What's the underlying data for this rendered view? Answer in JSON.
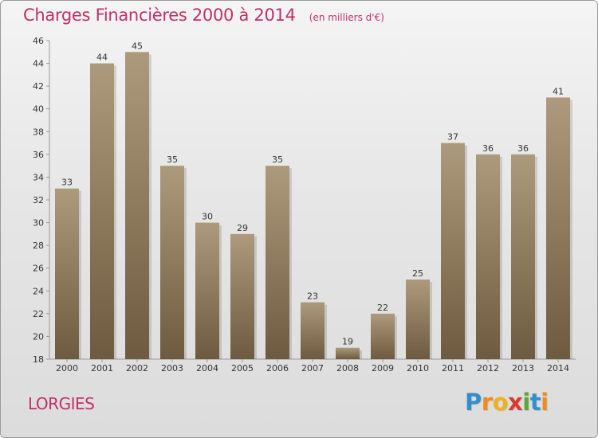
{
  "chart_data": {
    "type": "bar",
    "title": "Charges Financières 2000 à 2014",
    "subtitle": "(en milliers d'€)",
    "categories": [
      "2000",
      "2001",
      "2002",
      "2003",
      "2004",
      "2005",
      "2006",
      "2007",
      "2008",
      "2009",
      "2010",
      "2011",
      "2012",
      "2013",
      "2014"
    ],
    "values": [
      33,
      44,
      45,
      35,
      30,
      29,
      35,
      23,
      19,
      22,
      25,
      37,
      36,
      36,
      41
    ],
    "ylim": [
      18,
      46
    ],
    "yticks": [
      18,
      20,
      22,
      24,
      26,
      28,
      30,
      32,
      34,
      36,
      38,
      40,
      42,
      44,
      46
    ],
    "grid": false,
    "bar_color_light": "#ad9a7c",
    "bar_color_dark": "#6e5b3f"
  },
  "place": "LORGIES",
  "brand": {
    "letters": [
      "P",
      "r",
      "o",
      "x",
      "i",
      "t",
      "i"
    ],
    "colors": [
      "#2f8fcf",
      "#f08a1e",
      "#f2b01e",
      "#d83a2e",
      "#5aa83c",
      "#2f8fcf",
      "#f08a1e"
    ]
  }
}
